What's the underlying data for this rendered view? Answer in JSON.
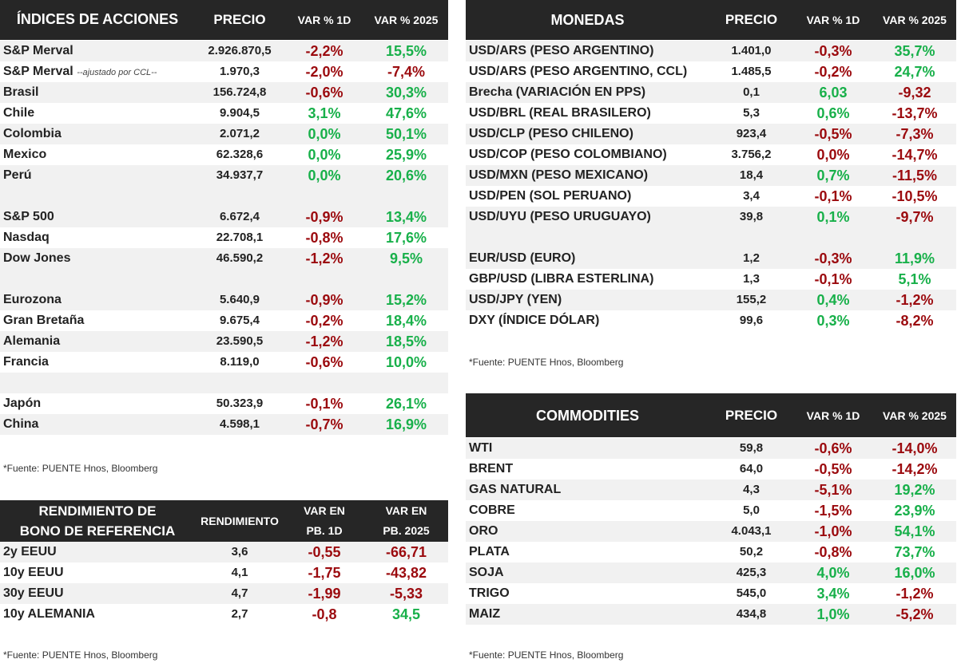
{
  "colors": {
    "header_bg": "#262626",
    "row_alt": "#f1f1f1",
    "negative": "#9b0a0e",
    "positive": "#18b04a"
  },
  "indices": {
    "headers": {
      "name": "ÍNDICES DE ACCIONES",
      "price": "PRECIO",
      "var1d": "VAR % 1D",
      "var2025": "VAR % 2025"
    },
    "rows": [
      {
        "name": "S&P Merval",
        "price": "2.926.870,5",
        "v1": "-2,2%",
        "v2": "15,5%",
        "s1": "neg",
        "s2": "pos"
      },
      {
        "name": "S&P Merval",
        "note": "--ajustado por CCL--",
        "price": "1.970,3",
        "v1": "-2,0%",
        "v2": "-7,4%",
        "s1": "neg",
        "s2": "neg"
      },
      {
        "name": "Brasil",
        "price": "156.724,8",
        "v1": "-0,6%",
        "v2": "30,3%",
        "s1": "neg",
        "s2": "pos"
      },
      {
        "name": "Chile",
        "price": "9.904,5",
        "v1": "3,1%",
        "v2": "47,6%",
        "s1": "pos",
        "s2": "pos"
      },
      {
        "name": "Colombia",
        "price": "2.071,2",
        "v1": "0,0%",
        "v2": "50,1%",
        "s1": "pos",
        "s2": "pos"
      },
      {
        "name": "Mexico",
        "price": "62.328,6",
        "v1": "0,0%",
        "v2": "25,9%",
        "s1": "pos",
        "s2": "pos"
      },
      {
        "name": "Perú",
        "price": "34.937,7",
        "v1": "0,0%",
        "v2": "20,6%",
        "s1": "pos",
        "s2": "pos"
      },
      {
        "spacer": true
      },
      {
        "name": "S&P 500",
        "price": "6.672,4",
        "v1": "-0,9%",
        "v2": "13,4%",
        "s1": "neg",
        "s2": "pos"
      },
      {
        "name": "Nasdaq",
        "price": "22.708,1",
        "v1": "-0,8%",
        "v2": "17,6%",
        "s1": "neg",
        "s2": "pos"
      },
      {
        "name": "Dow Jones",
        "price": "46.590,2",
        "v1": "-1,2%",
        "v2": "9,5%",
        "s1": "neg",
        "s2": "pos"
      },
      {
        "spacer": true
      },
      {
        "name": "Eurozona",
        "price": "5.640,9",
        "v1": "-0,9%",
        "v2": "15,2%",
        "s1": "neg",
        "s2": "pos"
      },
      {
        "name": "Gran Bretaña",
        "price": "9.675,4",
        "v1": "-0,2%",
        "v2": "18,4%",
        "s1": "neg",
        "s2": "pos"
      },
      {
        "name": "Alemania",
        "price": "23.590,5",
        "v1": "-1,2%",
        "v2": "18,5%",
        "s1": "neg",
        "s2": "pos"
      },
      {
        "name": "Francia",
        "price": "8.119,0",
        "v1": "-0,6%",
        "v2": "10,0%",
        "s1": "neg",
        "s2": "pos"
      },
      {
        "spacer": true
      },
      {
        "name": "Japón",
        "price": "50.323,9",
        "v1": "-0,1%",
        "v2": "26,1%",
        "s1": "neg",
        "s2": "pos"
      },
      {
        "name": "China",
        "price": "4.598,1",
        "v1": "-0,7%",
        "v2": "16,9%",
        "s1": "neg",
        "s2": "pos"
      }
    ],
    "source": "*Fuente: PUENTE Hnos, Bloomberg"
  },
  "bonds": {
    "headers": {
      "name_line1": "RENDIMIENTO DE",
      "name_line2": "BONO DE REFERENCIA",
      "yield": "RENDIMIENTO",
      "var1d_line1": "VAR EN",
      "var1d_line2": "PB. 1D",
      "var2025_line1": "VAR EN",
      "var2025_line2": "PB. 2025"
    },
    "rows": [
      {
        "name": "2y EEUU",
        "price": "3,6",
        "v1": "-0,55",
        "v2": "-66,71",
        "s1": "neg",
        "s2": "neg"
      },
      {
        "name": "10y EEUU",
        "price": "4,1",
        "v1": "-1,75",
        "v2": "-43,82",
        "s1": "neg",
        "s2": "neg"
      },
      {
        "name": "30y EEUU",
        "price": "4,7",
        "v1": "-1,99",
        "v2": "-5,33",
        "s1": "neg",
        "s2": "neg"
      },
      {
        "name": "10y ALEMANIA",
        "price": "2,7",
        "v1": "-0,8",
        "v2": "34,5",
        "s1": "neg",
        "s2": "pos"
      }
    ],
    "source": "*Fuente: PUENTE Hnos, Bloomberg"
  },
  "currencies": {
    "headers": {
      "name": "MONEDAS",
      "price": "PRECIO",
      "var1d": "VAR % 1D",
      "var2025": "VAR % 2025"
    },
    "rows": [
      {
        "name": "USD/ARS (PESO ARGENTINO)",
        "price": "1.401,0",
        "v1": "-0,3%",
        "v2": "35,7%",
        "s1": "neg",
        "s2": "pos"
      },
      {
        "name": "USD/ARS (PESO ARGENTINO, CCL)",
        "price": "1.485,5",
        "v1": "-0,2%",
        "v2": "24,7%",
        "s1": "neg",
        "s2": "pos"
      },
      {
        "name": "Brecha (VARIACIÓN EN PPS)",
        "price": "0,1",
        "v1": "6,03",
        "v2": "-9,32",
        "s1": "pos",
        "s2": "neg"
      },
      {
        "name": "USD/BRL (REAL BRASILERO)",
        "price": "5,3",
        "v1": "0,6%",
        "v2": "-13,7%",
        "s1": "pos",
        "s2": "neg"
      },
      {
        "name": "USD/CLP (PESO CHILENO)",
        "price": "923,4",
        "v1": "-0,5%",
        "v2": "-7,3%",
        "s1": "neg",
        "s2": "neg"
      },
      {
        "name": "USD/COP (PESO COLOMBIANO)",
        "price": "3.756,2",
        "v1": "0,0%",
        "v2": "-14,7%",
        "s1": "neg",
        "s2": "neg"
      },
      {
        "name": "USD/MXN (PESO MEXICANO)",
        "price": "18,4",
        "v1": "0,7%",
        "v2": "-11,5%",
        "s1": "pos",
        "s2": "neg"
      },
      {
        "name": "USD/PEN (SOL PERUANO)",
        "price": "3,4",
        "v1": "-0,1%",
        "v2": "-10,5%",
        "s1": "neg",
        "s2": "neg"
      },
      {
        "name": "USD/UYU (PESO URUGUAYO)",
        "price": "39,8",
        "v1": "0,1%",
        "v2": "-9,7%",
        "s1": "pos",
        "s2": "neg"
      },
      {
        "spacer": true
      },
      {
        "name": "EUR/USD (EURO)",
        "price": "1,2",
        "v1": "-0,3%",
        "v2": "11,9%",
        "s1": "neg",
        "s2": "pos"
      },
      {
        "name": "GBP/USD (LIBRA ESTERLINA)",
        "price": "1,3",
        "v1": "-0,1%",
        "v2": "5,1%",
        "s1": "neg",
        "s2": "pos"
      },
      {
        "name": "USD/JPY (YEN)",
        "price": "155,2",
        "v1": "0,4%",
        "v2": "-1,2%",
        "s1": "pos",
        "s2": "neg"
      },
      {
        "name": "DXY (ÍNDICE DÓLAR)",
        "price": "99,6",
        "v1": "0,3%",
        "v2": "-8,2%",
        "s1": "pos",
        "s2": "neg"
      }
    ],
    "source": "*Fuente: PUENTE Hnos, Bloomberg"
  },
  "commodities": {
    "headers": {
      "name": "COMMODITIES",
      "price": "PRECIO",
      "var1d": "VAR % 1D",
      "var2025": "VAR % 2025"
    },
    "rows": [
      {
        "name": "WTI",
        "price": "59,8",
        "v1": "-0,6%",
        "v2": "-14,0%",
        "s1": "neg",
        "s2": "neg"
      },
      {
        "name": "BRENT",
        "price": "64,0",
        "v1": "-0,5%",
        "v2": "-14,2%",
        "s1": "neg",
        "s2": "neg"
      },
      {
        "name": "GAS NATURAL",
        "price": "4,3",
        "v1": "-5,1%",
        "v2": "19,2%",
        "s1": "neg",
        "s2": "pos"
      },
      {
        "name": "COBRE",
        "price": "5,0",
        "v1": "-1,5%",
        "v2": "23,9%",
        "s1": "neg",
        "s2": "pos"
      },
      {
        "name": "ORO",
        "price": "4.043,1",
        "v1": "-1,0%",
        "v2": "54,1%",
        "s1": "neg",
        "s2": "pos"
      },
      {
        "name": "PLATA",
        "price": "50,2",
        "v1": "-0,8%",
        "v2": "73,7%",
        "s1": "neg",
        "s2": "pos"
      },
      {
        "name": "SOJA",
        "price": "425,3",
        "v1": "4,0%",
        "v2": "16,0%",
        "s1": "pos",
        "s2": "pos"
      },
      {
        "name": "TRIGO",
        "price": "545,0",
        "v1": "3,4%",
        "v2": "-1,2%",
        "s1": "pos",
        "s2": "neg"
      },
      {
        "name": "MAIZ",
        "price": "434,8",
        "v1": "1,0%",
        "v2": "-5,2%",
        "s1": "pos",
        "s2": "neg"
      }
    ],
    "source": "*Fuente: PUENTE Hnos, Bloomberg"
  }
}
